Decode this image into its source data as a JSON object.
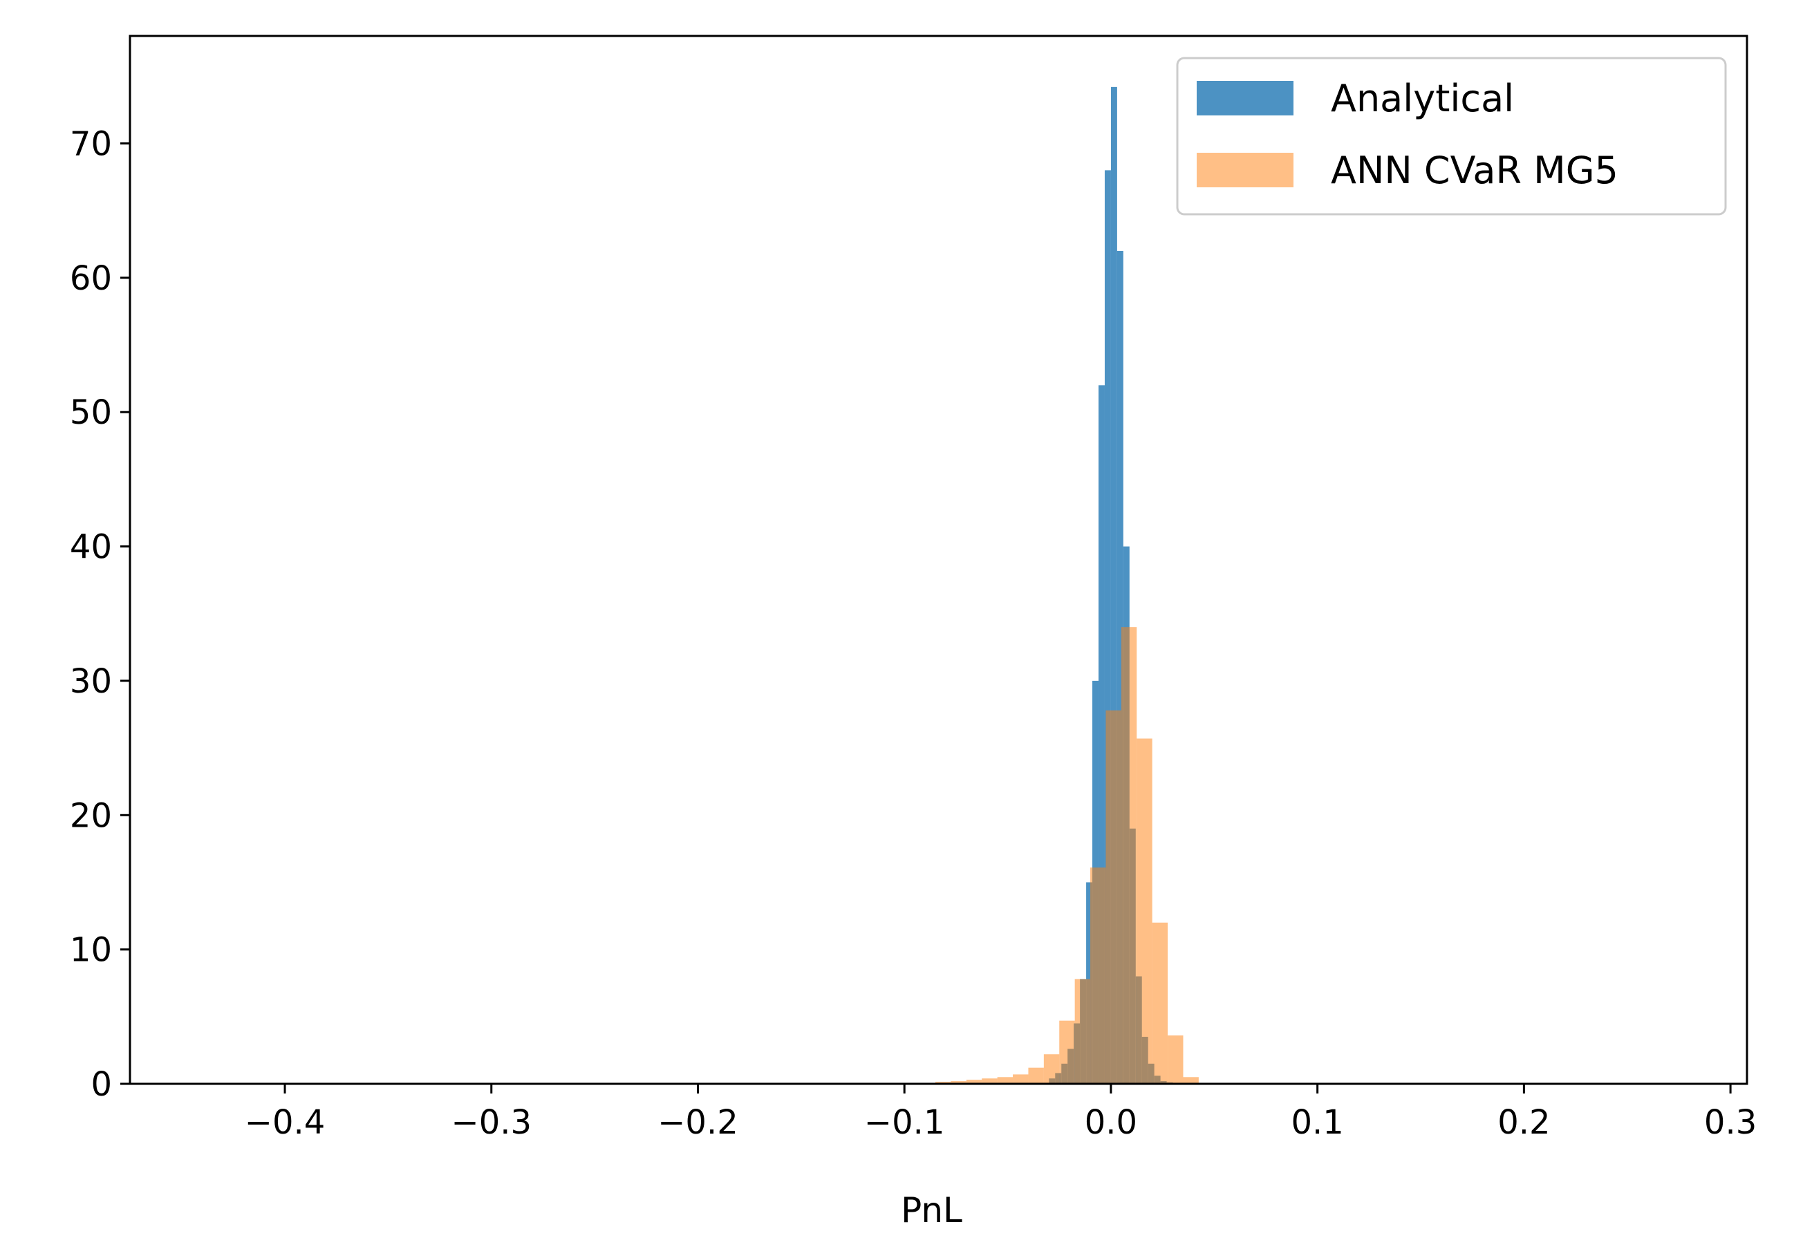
{
  "chart_data": {
    "type": "histogram",
    "title": "",
    "xlabel": "PnL",
    "ylabel": "",
    "xlim": [
      -0.475,
      0.308
    ],
    "ylim": [
      0,
      78
    ],
    "x_ticks": [
      -0.4,
      -0.3,
      -0.2,
      -0.1,
      0.0,
      0.1,
      0.2,
      0.3
    ],
    "x_tick_labels": [
      "−0.4",
      "−0.3",
      "−0.2",
      "−0.1",
      "0.0",
      "0.1",
      "0.2",
      "0.3"
    ],
    "y_ticks": [
      0,
      10,
      20,
      30,
      40,
      50,
      60,
      70
    ],
    "y_tick_labels": [
      "0",
      "10",
      "20",
      "30",
      "40",
      "50",
      "60",
      "70"
    ],
    "grid": false,
    "legend_position": "top-right",
    "series": [
      {
        "name": "Analytical",
        "color": "#1f77b4",
        "opacity": 0.8,
        "bin_edges": [
          -0.03,
          -0.027,
          -0.024,
          -0.021,
          -0.018,
          -0.015,
          -0.012,
          -0.009,
          -0.006,
          -0.003,
          0.0,
          0.003,
          0.006,
          0.009,
          0.012,
          0.015,
          0.018,
          0.021,
          0.024,
          0.027,
          0.03
        ],
        "values": [
          0.4,
          0.8,
          1.5,
          2.6,
          4.5,
          7.8,
          15.0,
          30.0,
          52.0,
          68.0,
          74.2,
          62.0,
          40.0,
          19.0,
          8.0,
          3.5,
          1.5,
          0.6,
          0.2,
          0.1
        ]
      },
      {
        "name": "ANN CVaR MG5",
        "color": "#ff7f0e",
        "opacity": 0.5,
        "bin_edges": [
          -0.085,
          -0.0775,
          -0.07,
          -0.0625,
          -0.055,
          -0.0475,
          -0.04,
          -0.0325,
          -0.025,
          -0.0175,
          -0.01,
          -0.0025,
          0.005,
          0.0125,
          0.02,
          0.0275,
          0.035,
          0.0425
        ],
        "values": [
          0.15,
          0.2,
          0.3,
          0.4,
          0.5,
          0.7,
          1.2,
          2.2,
          4.7,
          7.8,
          16.1,
          27.8,
          34.0,
          25.7,
          12.0,
          3.6,
          0.5
        ]
      }
    ]
  }
}
